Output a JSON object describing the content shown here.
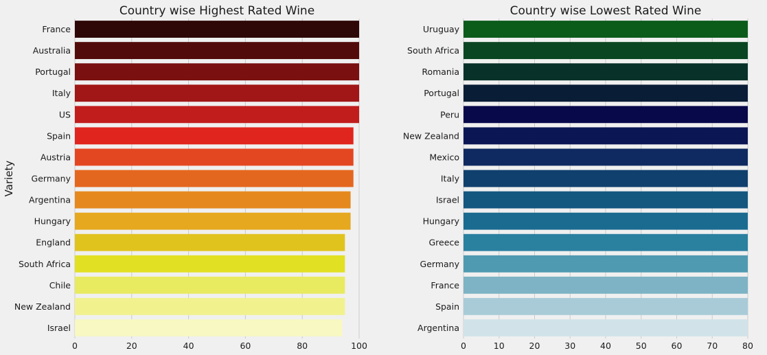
{
  "chart_data": [
    {
      "type": "bar",
      "orientation": "horizontal",
      "title": "Country wise Highest Rated Wine",
      "xlabel": "",
      "ylabel": "Variety",
      "xlim": [
        0,
        100
      ],
      "xticks": [
        "0",
        "20",
        "40",
        "60",
        "80",
        "100"
      ],
      "grid": "vertical",
      "categories": [
        "France",
        "Australia",
        "Portugal",
        "Italy",
        "US",
        "Spain",
        "Austria",
        "Germany",
        "Argentina",
        "Hungary",
        "England",
        "South Africa",
        "Chile",
        "New Zealand",
        "Israel"
      ],
      "values": [
        100,
        100,
        100,
        100,
        100,
        98,
        98,
        98,
        97,
        97,
        95,
        95,
        95,
        95,
        94
      ],
      "colors": [
        "#2e0707",
        "#520b0b",
        "#7a1010",
        "#a11616",
        "#c21d1d",
        "#e0251e",
        "#e34722",
        "#e4671f",
        "#e5891f",
        "#e6a81f",
        "#e1c31e",
        "#e2e022",
        "#e8ea60",
        "#f1f28e",
        "#f7f8c2"
      ]
    },
    {
      "type": "bar",
      "orientation": "horizontal",
      "title": "Country wise Lowest Rated Wine",
      "xlabel": "",
      "ylabel": "",
      "xlim": [
        0,
        80
      ],
      "xticks": [
        "0",
        "10",
        "20",
        "30",
        "40",
        "50",
        "60",
        "70",
        "80"
      ],
      "grid": "vertical",
      "categories": [
        "Uruguay",
        "South Africa",
        "Romania",
        "Portugal",
        "Peru",
        "New Zealand",
        "Mexico",
        "Italy",
        "Israel",
        "Hungary",
        "Greece",
        "Germany",
        "France",
        "Spain",
        "Argentina"
      ],
      "values": [
        80,
        80,
        80,
        80,
        80,
        80,
        80,
        80,
        80,
        80,
        80,
        80,
        80,
        80,
        80
      ],
      "colors": [
        "#0b5b1b",
        "#0a4621",
        "#083129",
        "#0a1d36",
        "#08094a",
        "#0b1755",
        "#0f2a61",
        "#10406e",
        "#14577f",
        "#1b6b91",
        "#2a809f",
        "#4f9ab0",
        "#7db3c4",
        "#a9cbd8",
        "#d1e3e9"
      ]
    }
  ]
}
